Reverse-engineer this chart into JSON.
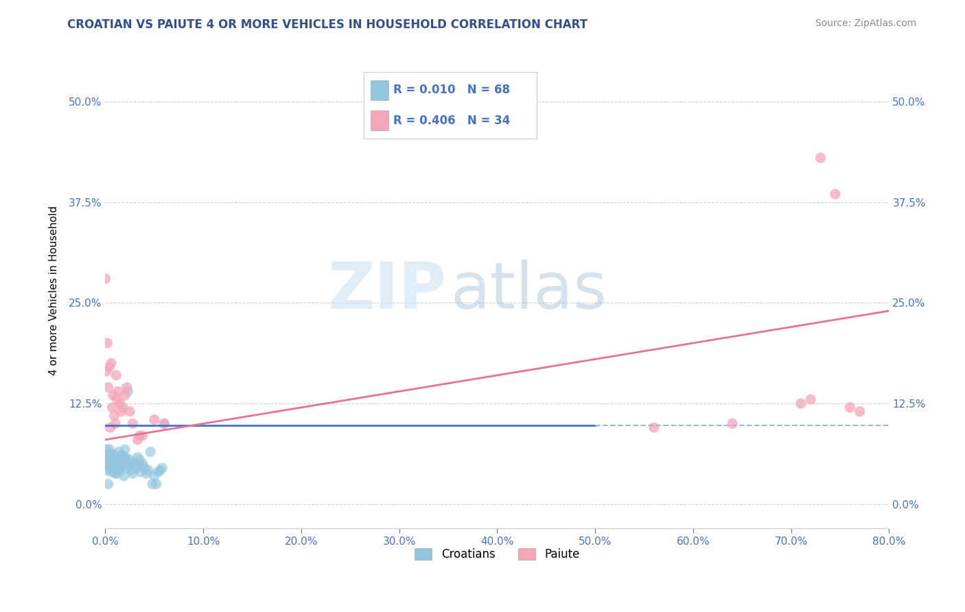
{
  "title": "CROATIAN VS PAIUTE 4 OR MORE VEHICLES IN HOUSEHOLD CORRELATION CHART",
  "source": "Source: ZipAtlas.com",
  "xlim": [
    0.0,
    0.8
  ],
  "ylim": [
    -0.03,
    0.56
  ],
  "ylabel": "4 or more Vehicles in Household",
  "legend_labels": [
    "Croatians",
    "Paiute"
  ],
  "blue_color": "#92c5de",
  "pink_color": "#f4a5b8",
  "blue_scatter": [
    [
      0.001,
      0.06
    ],
    [
      0.002,
      0.055
    ],
    [
      0.002,
      0.042
    ],
    [
      0.003,
      0.048
    ],
    [
      0.003,
      0.058
    ],
    [
      0.003,
      0.025
    ],
    [
      0.004,
      0.068
    ],
    [
      0.004,
      0.052
    ],
    [
      0.005,
      0.062
    ],
    [
      0.005,
      0.045
    ],
    [
      0.006,
      0.04
    ],
    [
      0.006,
      0.055
    ],
    [
      0.007,
      0.052
    ],
    [
      0.007,
      0.048
    ],
    [
      0.008,
      0.058
    ],
    [
      0.008,
      0.062
    ],
    [
      0.009,
      0.045
    ],
    [
      0.009,
      0.058
    ],
    [
      0.01,
      0.038
    ],
    [
      0.01,
      0.05
    ],
    [
      0.011,
      0.06
    ],
    [
      0.011,
      0.045
    ],
    [
      0.012,
      0.055
    ],
    [
      0.012,
      0.038
    ],
    [
      0.013,
      0.05
    ],
    [
      0.013,
      0.042
    ],
    [
      0.014,
      0.065
    ],
    [
      0.015,
      0.042
    ],
    [
      0.015,
      0.055
    ],
    [
      0.016,
      0.048
    ],
    [
      0.016,
      0.052
    ],
    [
      0.017,
      0.053
    ],
    [
      0.017,
      0.06
    ],
    [
      0.018,
      0.06
    ],
    [
      0.018,
      0.048
    ],
    [
      0.019,
      0.035
    ],
    [
      0.019,
      0.058
    ],
    [
      0.02,
      0.068
    ],
    [
      0.02,
      0.052
    ],
    [
      0.021,
      0.058
    ],
    [
      0.022,
      0.045
    ],
    [
      0.023,
      0.14
    ],
    [
      0.025,
      0.055
    ],
    [
      0.026,
      0.048
    ],
    [
      0.027,
      0.042
    ],
    [
      0.028,
      0.038
    ],
    [
      0.03,
      0.052
    ],
    [
      0.032,
      0.045
    ],
    [
      0.033,
      0.058
    ],
    [
      0.034,
      0.048
    ],
    [
      0.035,
      0.055
    ],
    [
      0.036,
      0.04
    ],
    [
      0.038,
      0.05
    ],
    [
      0.04,
      0.045
    ],
    [
      0.042,
      0.038
    ],
    [
      0.044,
      0.042
    ],
    [
      0.046,
      0.065
    ],
    [
      0.048,
      0.025
    ],
    [
      0.05,
      0.035
    ],
    [
      0.052,
      0.025
    ],
    [
      0.054,
      0.04
    ],
    [
      0.056,
      0.042
    ],
    [
      0.058,
      0.045
    ],
    [
      0.06,
      0.1
    ],
    [
      0.001,
      0.068
    ],
    [
      0.0,
      0.058
    ],
    [
      0.001,
      0.05
    ],
    [
      0.002,
      0.048
    ]
  ],
  "pink_scatter": [
    [
      0.0,
      0.28
    ],
    [
      0.001,
      0.165
    ],
    [
      0.002,
      0.2
    ],
    [
      0.003,
      0.145
    ],
    [
      0.004,
      0.17
    ],
    [
      0.005,
      0.095
    ],
    [
      0.006,
      0.175
    ],
    [
      0.007,
      0.12
    ],
    [
      0.008,
      0.135
    ],
    [
      0.009,
      0.11
    ],
    [
      0.01,
      0.1
    ],
    [
      0.011,
      0.16
    ],
    [
      0.012,
      0.13
    ],
    [
      0.013,
      0.14
    ],
    [
      0.015,
      0.125
    ],
    [
      0.016,
      0.115
    ],
    [
      0.018,
      0.12
    ],
    [
      0.02,
      0.135
    ],
    [
      0.022,
      0.145
    ],
    [
      0.025,
      0.115
    ],
    [
      0.028,
      0.1
    ],
    [
      0.033,
      0.08
    ],
    [
      0.035,
      0.085
    ],
    [
      0.038,
      0.085
    ],
    [
      0.05,
      0.105
    ],
    [
      0.06,
      0.1
    ],
    [
      0.56,
      0.095
    ],
    [
      0.64,
      0.1
    ],
    [
      0.71,
      0.125
    ],
    [
      0.72,
      0.13
    ],
    [
      0.73,
      0.43
    ],
    [
      0.745,
      0.385
    ],
    [
      0.76,
      0.12
    ],
    [
      0.77,
      0.115
    ]
  ],
  "blue_trend_x": [
    0.0,
    0.5
  ],
  "blue_trend_y": [
    0.098,
    0.098
  ],
  "blue_trend_solid_end": 0.5,
  "blue_trend_dashed_start": 0.5,
  "blue_trend_dashed_end": 0.8,
  "blue_trend_dashed_y": 0.098,
  "pink_trend_x": [
    0.0,
    0.8
  ],
  "pink_trend_y": [
    0.08,
    0.24
  ],
  "watermark_zip": "ZIP",
  "watermark_atlas": "atlas",
  "title_fontsize": 12,
  "source_fontsize": 10,
  "tick_color": "#4472c4",
  "grid_color": "#d0d0d0",
  "legend_r1": "R = 0.010",
  "legend_n1": "N = 68",
  "legend_r2": "R = 0.406",
  "legend_n2": "N = 34"
}
